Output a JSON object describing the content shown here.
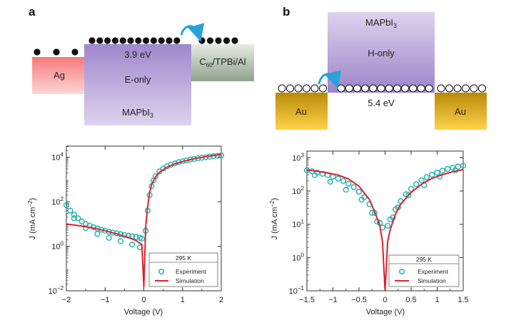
{
  "panel_a": {
    "letter": "a",
    "ag_label": "Ag",
    "mapbi_top_value": "3.9 eV",
    "mapbi_mid_label": "E-only",
    "mapbi_bottom_label_main": "MAPbI",
    "mapbi_bottom_label_sub": "3",
    "right_layer_prefix": "C",
    "right_layer_sub": "60",
    "right_layer_suffix": "/TPBi/Al",
    "colors": {
      "ag": "#f38f8f",
      "mapbi": "#b3a2d4",
      "right_layer": "#a8b8a4",
      "arrow": "#27a2d8"
    }
  },
  "panel_b": {
    "letter": "b",
    "mapbi_top_label_main": "MAPbI",
    "mapbi_top_label_sub": "3",
    "mapbi_mid_label": "H-only",
    "au_left_label": "Au",
    "au_right_label": "Au",
    "gap_value": "5.4 eV",
    "colors": {
      "au": "#e4b21c",
      "mapbi": "#b3a2d4",
      "arrow": "#27a2d8"
    }
  },
  "chart_data": [
    {
      "type": "scatter",
      "id": "electron-only",
      "title": "",
      "xlabel": "Voltage (V)",
      "ylabel_main": "J (mA cm",
      "ylabel_sup": "−2",
      "ylabel_end": ")",
      "xlim": [
        -2,
        2
      ],
      "ylim_log10": [
        -2,
        4.5
      ],
      "x_ticks": [
        -2,
        -1,
        0,
        1,
        2
      ],
      "x_tick_labels": [
        "−2",
        "−1",
        "0",
        "1",
        "2"
      ],
      "y_ticks": [
        {
          "exp": -2,
          "base": "10",
          "sup": "−2"
        },
        {
          "exp": 0,
          "base": "10",
          "sup": "0"
        },
        {
          "exp": 2,
          "base": "10",
          "sup": "2"
        },
        {
          "exp": 4,
          "base": "10",
          "sup": "4"
        }
      ],
      "legend": {
        "title": "295 K",
        "entries": [
          "Experiment",
          "Simulation"
        ],
        "position": "bottom-right"
      },
      "colors": {
        "experiment": "#2bb5b5",
        "simulation": "#e0202a"
      },
      "series": [
        {
          "name": "Experiment",
          "x": [
            -2.0,
            -1.9,
            -1.8,
            -1.7,
            -1.6,
            -1.5,
            -1.4,
            -1.3,
            -1.2,
            -1.1,
            -1.0,
            -0.9,
            -0.8,
            -0.7,
            -0.6,
            -0.5,
            -0.4,
            -0.3,
            -0.2,
            -0.1,
            -0.05,
            0.05,
            0.1,
            0.15,
            0.2,
            0.25,
            0.3,
            0.4,
            0.5,
            0.6,
            0.7,
            0.8,
            0.9,
            1.0,
            1.1,
            1.2,
            1.3,
            1.4,
            1.5,
            1.6,
            1.7,
            1.8,
            1.9,
            2.0,
            -1.8,
            -1.5,
            -1.2,
            -0.9,
            -0.6,
            -0.3,
            -0.1
          ],
          "y": [
            70,
            40,
            26,
            18,
            13,
            10,
            8.5,
            7.2,
            6.3,
            5.6,
            5.0,
            4.5,
            4.1,
            3.8,
            3.5,
            3.2,
            3.0,
            2.8,
            2.6,
            2.4,
            2.2,
            5,
            40,
            200,
            500,
            900,
            1400,
            2300,
            3100,
            3900,
            4600,
            5300,
            6000,
            6600,
            7200,
            7800,
            8400,
            9000,
            9500,
            10000,
            10600,
            11100,
            11600,
            12100,
            18,
            6.5,
            3.6,
            2.4,
            1.7,
            1.2,
            0.9
          ]
        },
        {
          "name": "Simulation",
          "x": [
            -2.0,
            -1.8,
            -1.6,
            -1.4,
            -1.2,
            -1.0,
            -0.8,
            -0.6,
            -0.4,
            -0.2,
            -0.05,
            0.0,
            0.05,
            0.1,
            0.15,
            0.2,
            0.3,
            0.4,
            0.6,
            0.8,
            1.0,
            1.2,
            1.4,
            1.6,
            1.8,
            2.0
          ],
          "y": [
            10,
            9.0,
            8.0,
            7.0,
            6.0,
            5.0,
            4.0,
            3.2,
            2.5,
            1.8,
            1.2,
            0.015,
            8,
            60,
            250,
            600,
            1300,
            2100,
            3600,
            5000,
            6400,
            7800,
            9200,
            10600,
            12000,
            13500
          ]
        }
      ]
    },
    {
      "type": "scatter",
      "id": "hole-only",
      "title": "",
      "xlabel": "Voltage (V)",
      "ylabel_main": "J (mA cm",
      "ylabel_sup": "−2",
      "ylabel_end": ")",
      "xlim": [
        -1.5,
        1.5
      ],
      "ylim_log10": [
        -1,
        3.2
      ],
      "x_ticks": [
        -1.5,
        -1.0,
        -0.5,
        0,
        0.5,
        1.0,
        1.5
      ],
      "x_tick_labels": [
        "−1.5",
        "−1",
        "−0.5",
        "0",
        "0.5",
        "1",
        "1.5"
      ],
      "y_ticks": [
        {
          "exp": -1,
          "base": "10",
          "sup": "−1"
        },
        {
          "exp": 0,
          "base": "10",
          "sup": "0"
        },
        {
          "exp": 1,
          "base": "10",
          "sup": "1"
        },
        {
          "exp": 2,
          "base": "10",
          "sup": "2"
        },
        {
          "exp": 3,
          "base": "10",
          "sup": "3"
        }
      ],
      "legend": {
        "title": "295 K",
        "entries": [
          "Experiment",
          "Simulation"
        ],
        "position": "bottom-right"
      },
      "colors": {
        "experiment": "#2bb5b5",
        "simulation": "#e0202a"
      },
      "series": [
        {
          "name": "Experiment",
          "x": [
            -1.5,
            -1.4,
            -1.3,
            -1.2,
            -1.1,
            -1.0,
            -0.9,
            -0.8,
            -0.7,
            -0.6,
            -0.5,
            -0.4,
            -0.3,
            -0.2,
            -0.1,
            -0.05,
            0.05,
            0.1,
            0.2,
            0.3,
            0.4,
            0.5,
            0.6,
            0.7,
            0.8,
            0.9,
            1.0,
            1.1,
            1.2,
            1.3,
            1.4,
            1.5,
            -1.35,
            -1.05,
            -0.75,
            -0.45,
            -0.25,
            -0.15,
            0.15,
            0.25,
            0.45,
            0.75,
            1.05,
            1.35
          ],
          "y": [
            420,
            390,
            360,
            330,
            300,
            270,
            235,
            200,
            165,
            130,
            95,
            65,
            40,
            22,
            11,
            8,
            9,
            14,
            28,
            50,
            80,
            115,
            160,
            210,
            260,
            310,
            360,
            410,
            460,
            500,
            540,
            580,
            300,
            190,
            110,
            55,
            22,
            12,
            16,
            32,
            75,
            150,
            270,
            420
          ]
        },
        {
          "name": "Simulation",
          "x": [
            -1.5,
            -1.3,
            -1.1,
            -0.9,
            -0.7,
            -0.5,
            -0.3,
            -0.2,
            -0.1,
            -0.05,
            0.0,
            0.05,
            0.1,
            0.2,
            0.3,
            0.5,
            0.7,
            0.9,
            1.1,
            1.3,
            1.5
          ],
          "y": [
            430,
            390,
            350,
            300,
            230,
            140,
            55,
            24,
            9,
            3,
            0.1,
            3,
            7,
            20,
            40,
            90,
            160,
            240,
            310,
            380,
            440
          ]
        }
      ]
    }
  ]
}
